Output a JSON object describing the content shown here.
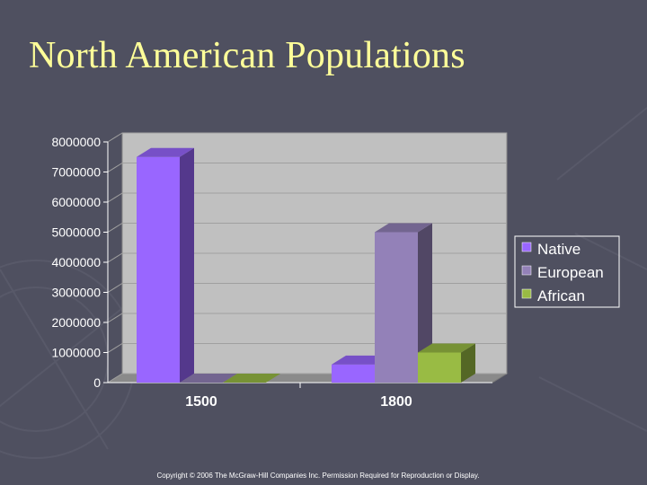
{
  "slide": {
    "title": "North American Populations",
    "copyright": "Copyright © 2006 The McGraw-Hill Companies Inc. Permission Required for Reproduction or Display."
  },
  "colors": {
    "background": "#4f5060",
    "title": "#ffff99",
    "plot_wall": "#c0c0c0",
    "native": "#9966ff",
    "european": "#9381b8",
    "african": "#99bb44"
  },
  "chart_data": {
    "type": "bar",
    "style": "3d-clustered-column",
    "categories": [
      "1500",
      "1800"
    ],
    "series": [
      {
        "name": "Native",
        "values": [
          7500000,
          600000
        ],
        "color": "#9966ff"
      },
      {
        "name": "European",
        "values": [
          0,
          5000000
        ],
        "color": "#9381b8"
      },
      {
        "name": "African",
        "values": [
          0,
          1000000
        ],
        "color": "#99bb44"
      }
    ],
    "ylim": [
      0,
      8000000
    ],
    "yticks": [
      "0",
      "1000000",
      "2000000",
      "3000000",
      "4000000",
      "5000000",
      "6000000",
      "7000000",
      "8000000"
    ],
    "grid": true,
    "legend_position": "right"
  }
}
